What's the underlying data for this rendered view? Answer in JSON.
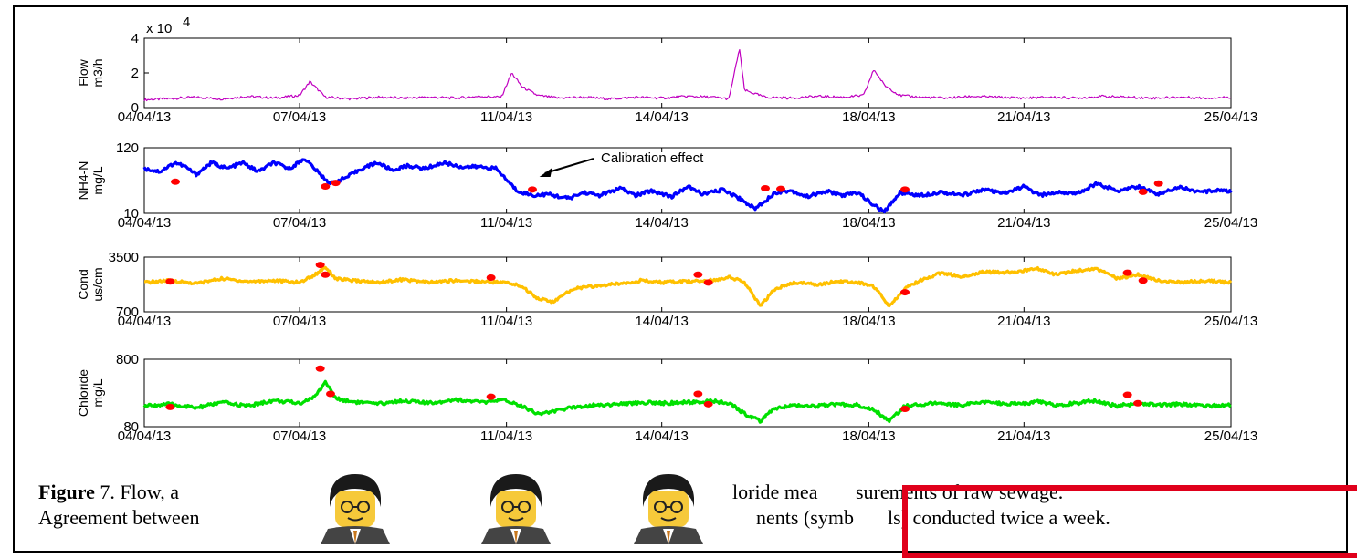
{
  "chart_data": [
    {
      "type": "line",
      "ylabel": [
        "Flow",
        "m3/h"
      ],
      "ylim": [
        0,
        40000
      ],
      "yticks": [
        "0",
        "2",
        "4"
      ],
      "exponent_label": "x 10",
      "exponent": "4",
      "xticks": [
        "04/04/13",
        "07/04/13",
        "11/04/13",
        "14/04/13",
        "18/04/13",
        "21/04/13",
        "25/04/13"
      ],
      "series": [
        {
          "color": "#c000c0",
          "baseline": 5000,
          "points": [
            [
              0,
              4500
            ],
            [
              0.5,
              5200
            ],
            [
              1,
              6000
            ],
            [
              1.5,
              5000
            ],
            [
              2,
              6500
            ],
            [
              2.5,
              5500
            ],
            [
              3,
              7000
            ],
            [
              3.2,
              15000
            ],
            [
              3.3,
              12000
            ],
            [
              3.5,
              6000
            ],
            [
              4,
              5000
            ],
            [
              4.5,
              6000
            ],
            [
              5,
              5500
            ],
            [
              5.5,
              6000
            ],
            [
              6,
              5500
            ],
            [
              6.5,
              6500
            ],
            [
              6.9,
              6000
            ],
            [
              7.1,
              20000
            ],
            [
              7.3,
              12000
            ],
            [
              7.6,
              7000
            ],
            [
              8,
              5500
            ],
            [
              8.5,
              6000
            ],
            [
              9,
              5000
            ],
            [
              9.5,
              6000
            ],
            [
              10,
              5500
            ],
            [
              10.5,
              6500
            ],
            [
              11,
              6000
            ],
            [
              11.3,
              5000
            ],
            [
              11.5,
              34000
            ],
            [
              11.6,
              10000
            ],
            [
              12,
              6000
            ],
            [
              12.5,
              5500
            ],
            [
              13,
              6500
            ],
            [
              13.5,
              6000
            ],
            [
              13.9,
              7000
            ],
            [
              14.1,
              22000
            ],
            [
              14.3,
              13000
            ],
            [
              14.6,
              7000
            ],
            [
              15,
              6000
            ],
            [
              15.5,
              5500
            ],
            [
              16,
              6500
            ],
            [
              16.5,
              6000
            ],
            [
              17,
              5500
            ],
            [
              17.5,
              6000
            ],
            [
              18,
              5500
            ],
            [
              18.5,
              6500
            ],
            [
              19,
              6000
            ],
            [
              19.5,
              5500
            ],
            [
              20,
              6000
            ],
            [
              20.5,
              5500
            ],
            [
              21,
              6000
            ]
          ]
        }
      ]
    },
    {
      "type": "line",
      "ylabel": [
        "NH4-N",
        "mg/L"
      ],
      "ylim": [
        10,
        120
      ],
      "yticks": [
        "10",
        "120"
      ],
      "xticks": [
        "04/04/13",
        "07/04/13",
        "11/04/13",
        "14/04/13",
        "18/04/13",
        "21/04/13",
        "25/04/13"
      ],
      "annotation": "Calibration effect",
      "series": [
        {
          "color": "#0000ff",
          "points": [
            [
              0,
              85
            ],
            [
              0.3,
              80
            ],
            [
              0.6,
              95
            ],
            [
              0.8,
              88
            ],
            [
              1,
              75
            ],
            [
              1.3,
              95
            ],
            [
              1.6,
              85
            ],
            [
              1.9,
              95
            ],
            [
              2.2,
              80
            ],
            [
              2.5,
              95
            ],
            [
              2.8,
              85
            ],
            [
              3.1,
              102
            ],
            [
              3.4,
              75
            ],
            [
              3.6,
              60
            ],
            [
              3.9,
              70
            ],
            [
              4.2,
              85
            ],
            [
              4.5,
              95
            ],
            [
              4.8,
              82
            ],
            [
              5.1,
              90
            ],
            [
              5.4,
              85
            ],
            [
              5.8,
              95
            ],
            [
              6.1,
              88
            ],
            [
              6.5,
              88
            ],
            [
              6.8,
              85
            ],
            [
              7.2,
              48
            ],
            [
              7.5,
              40
            ],
            [
              7.8,
              42
            ],
            [
              8.2,
              35
            ],
            [
              8.5,
              45
            ],
            [
              8.8,
              40
            ],
            [
              9.2,
              52
            ],
            [
              9.5,
              40
            ],
            [
              9.8,
              48
            ],
            [
              10.2,
              38
            ],
            [
              10.5,
              55
            ],
            [
              10.8,
              42
            ],
            [
              11.2,
              50
            ],
            [
              11.5,
              35
            ],
            [
              11.8,
              18
            ],
            [
              12.2,
              45
            ],
            [
              12.5,
              48
            ],
            [
              12.8,
              38
            ],
            [
              13.2,
              47
            ],
            [
              13.5,
              40
            ],
            [
              13.8,
              45
            ],
            [
              14.0,
              30
            ],
            [
              14.3,
              12
            ],
            [
              14.6,
              45
            ],
            [
              15.0,
              40
            ],
            [
              15.4,
              46
            ],
            [
              15.8,
              40
            ],
            [
              16.2,
              50
            ],
            [
              16.6,
              43
            ],
            [
              17.0,
              55
            ],
            [
              17.3,
              40
            ],
            [
              17.7,
              46
            ],
            [
              18.0,
              42
            ],
            [
              18.4,
              60
            ],
            [
              18.8,
              48
            ],
            [
              19.2,
              55
            ],
            [
              19.6,
              42
            ],
            [
              20.0,
              55
            ],
            [
              20.4,
              45
            ],
            [
              20.8,
              50
            ],
            [
              21,
              46
            ]
          ]
        }
      ],
      "markers": [
        [
          0.6,
          63
        ],
        [
          3.5,
          55
        ],
        [
          3.7,
          61
        ],
        [
          7.5,
          50
        ],
        [
          12.0,
          52
        ],
        [
          12.3,
          51
        ],
        [
          14.7,
          50
        ],
        [
          19.3,
          46
        ],
        [
          19.6,
          60
        ]
      ]
    },
    {
      "type": "line",
      "ylabel": [
        "Cond",
        "us/cm"
      ],
      "ylim": [
        700,
        3500
      ],
      "yticks": [
        "700",
        "3500"
      ],
      "xticks": [
        "04/04/13",
        "07/04/13",
        "11/04/13",
        "14/04/13",
        "18/04/13",
        "21/04/13",
        "25/04/13"
      ],
      "series": [
        {
          "color": "#ffc000",
          "points": [
            [
              0,
              2200
            ],
            [
              0.5,
              2300
            ],
            [
              1,
              2150
            ],
            [
              1.5,
              2400
            ],
            [
              2,
              2250
            ],
            [
              2.5,
              2300
            ],
            [
              3,
              2200
            ],
            [
              3.3,
              2600
            ],
            [
              3.5,
              3000
            ],
            [
              3.7,
              2400
            ],
            [
              4,
              2300
            ],
            [
              4.5,
              2200
            ],
            [
              5,
              2350
            ],
            [
              5.5,
              2200
            ],
            [
              6,
              2300
            ],
            [
              6.5,
              2250
            ],
            [
              7,
              2200
            ],
            [
              7.3,
              2000
            ],
            [
              7.6,
              1400
            ],
            [
              7.9,
              1200
            ],
            [
              8.3,
              1900
            ],
            [
              8.7,
              2000
            ],
            [
              9.2,
              2150
            ],
            [
              9.6,
              2300
            ],
            [
              10,
              2200
            ],
            [
              10.5,
              2250
            ],
            [
              11,
              2300
            ],
            [
              11.3,
              2500
            ],
            [
              11.6,
              2200
            ],
            [
              11.9,
              1000
            ],
            [
              12.2,
              1900
            ],
            [
              12.6,
              2200
            ],
            [
              13.0,
              2100
            ],
            [
              13.4,
              2250
            ],
            [
              13.8,
              2200
            ],
            [
              14.1,
              2000
            ],
            [
              14.4,
              1000
            ],
            [
              14.7,
              1900
            ],
            [
              15,
              2300
            ],
            [
              15.4,
              2700
            ],
            [
              15.8,
              2500
            ],
            [
              16.2,
              2750
            ],
            [
              16.6,
              2700
            ],
            [
              17,
              2800
            ],
            [
              17.3,
              2900
            ],
            [
              17.6,
              2600
            ],
            [
              18,
              2800
            ],
            [
              18.4,
              2900
            ],
            [
              18.8,
              2400
            ],
            [
              19.2,
              2600
            ],
            [
              19.6,
              2300
            ],
            [
              20,
              2200
            ],
            [
              20.5,
              2300
            ],
            [
              21,
              2200
            ]
          ]
        }
      ],
      "markers": [
        [
          0.5,
          2250
        ],
        [
          3.4,
          3100
        ],
        [
          3.5,
          2600
        ],
        [
          6.7,
          2450
        ],
        [
          10.7,
          2600
        ],
        [
          10.9,
          2200
        ],
        [
          14.7,
          1700
        ],
        [
          19.0,
          2700
        ],
        [
          19.3,
          2300
        ]
      ]
    },
    {
      "type": "line",
      "ylabel": [
        "Chloride",
        "mg/L"
      ],
      "ylim": [
        80,
        800
      ],
      "yticks": [
        "80",
        "800"
      ],
      "xticks": [
        "04/04/13",
        "07/04/13",
        "11/04/13",
        "14/04/13",
        "18/04/13",
        "21/04/13",
        "25/04/13"
      ],
      "series": [
        {
          "color": "#00e000",
          "points": [
            [
              0,
              300
            ],
            [
              0.5,
              320
            ],
            [
              1,
              280
            ],
            [
              1.5,
              340
            ],
            [
              2,
              300
            ],
            [
              2.5,
              360
            ],
            [
              3,
              330
            ],
            [
              3.3,
              400
            ],
            [
              3.5,
              560
            ],
            [
              3.7,
              380
            ],
            [
              4,
              350
            ],
            [
              4.5,
              320
            ],
            [
              5,
              360
            ],
            [
              5.5,
              330
            ],
            [
              6,
              370
            ],
            [
              6.5,
              340
            ],
            [
              7,
              360
            ],
            [
              7.3,
              300
            ],
            [
              7.6,
              220
            ],
            [
              7.9,
              240
            ],
            [
              8.3,
              290
            ],
            [
              8.7,
              310
            ],
            [
              9.2,
              320
            ],
            [
              9.6,
              340
            ],
            [
              10,
              330
            ],
            [
              10.5,
              340
            ],
            [
              11,
              350
            ],
            [
              11.3,
              330
            ],
            [
              11.6,
              220
            ],
            [
              11.9,
              140
            ],
            [
              12.2,
              280
            ],
            [
              12.6,
              310
            ],
            [
              13.0,
              300
            ],
            [
              13.4,
              320
            ],
            [
              13.8,
              310
            ],
            [
              14.1,
              260
            ],
            [
              14.4,
              140
            ],
            [
              14.7,
              300
            ],
            [
              15,
              320
            ],
            [
              15.4,
              330
            ],
            [
              15.8,
              310
            ],
            [
              16.2,
              340
            ],
            [
              16.6,
              330
            ],
            [
              17,
              320
            ],
            [
              17.3,
              350
            ],
            [
              17.6,
              310
            ],
            [
              18,
              330
            ],
            [
              18.4,
              360
            ],
            [
              18.8,
              300
            ],
            [
              19.2,
              330
            ],
            [
              19.6,
              310
            ],
            [
              20,
              320
            ],
            [
              20.5,
              300
            ],
            [
              21,
              310
            ]
          ]
        }
      ],
      "markers": [
        [
          0.5,
          290
        ],
        [
          3.4,
          700
        ],
        [
          3.6,
          430
        ],
        [
          6.7,
          400
        ],
        [
          10.7,
          430
        ],
        [
          10.9,
          320
        ],
        [
          14.7,
          270
        ],
        [
          19.0,
          420
        ],
        [
          19.2,
          330
        ]
      ]
    }
  ],
  "caption": {
    "label": "Figure",
    "number": "7",
    "line1_a": ". Flow, a",
    "line1_b": "loride mea",
    "line1_c": "surements of raw sewage.",
    "line2_a": "Agreement between",
    "line2_b": "nents (symb",
    "line2_c": "ls) conducted twice a week."
  }
}
